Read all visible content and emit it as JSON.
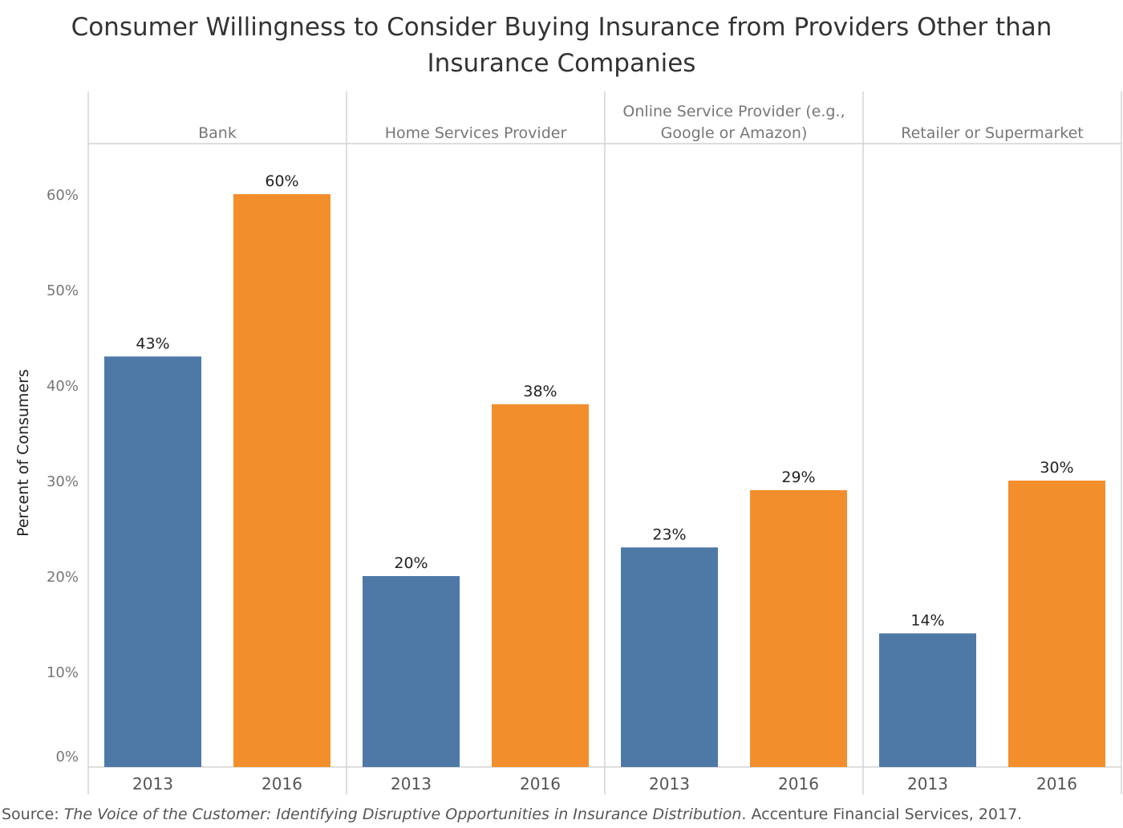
{
  "title_lines": [
    "Consumer Willingness to Consider Buying Insurance from Providers Other than",
    "Insurance Companies"
  ],
  "source": {
    "prefix": "Source: ",
    "italic": "The Voice of the Customer: Identifying Disruptive Opportunities in Insurance Distribution",
    "suffix": ". Accenture Financial Services, 2017."
  },
  "colors": {
    "2013": "#4e79a7",
    "2016": "#f28e2b",
    "grid_line": "#d4d4d4",
    "axis_text": "#777777",
    "label_text": "#222222"
  },
  "chart_data": {
    "type": "bar",
    "title": "Consumer Willingness to Consider Buying Insurance from Providers Other than Insurance Companies",
    "ylabel": "Percent of Consumers",
    "ylim": [
      0,
      65
    ],
    "yticks": [
      0,
      10,
      20,
      30,
      40,
      50,
      60
    ],
    "ytick_labels": [
      "0%",
      "10%",
      "20%",
      "30%",
      "40%",
      "50%",
      "60%"
    ],
    "grid": false,
    "legend": "none",
    "x": [
      "2013",
      "2016"
    ],
    "panels": [
      {
        "label_lines": [
          "Bank"
        ],
        "values": [
          43,
          60
        ],
        "value_labels": [
          "43%",
          "60%"
        ]
      },
      {
        "label_lines": [
          "Home Services Provider"
        ],
        "values": [
          20,
          38
        ],
        "value_labels": [
          "20%",
          "38%"
        ]
      },
      {
        "label_lines": [
          "Online Service Provider (e.g.,",
          "Google or Amazon)"
        ],
        "values": [
          23,
          29
        ],
        "value_labels": [
          "23%",
          "29%"
        ]
      },
      {
        "label_lines": [
          "Retailer or Supermarket"
        ],
        "values": [
          14,
          30
        ],
        "value_labels": [
          "14%",
          "30%"
        ]
      }
    ]
  }
}
